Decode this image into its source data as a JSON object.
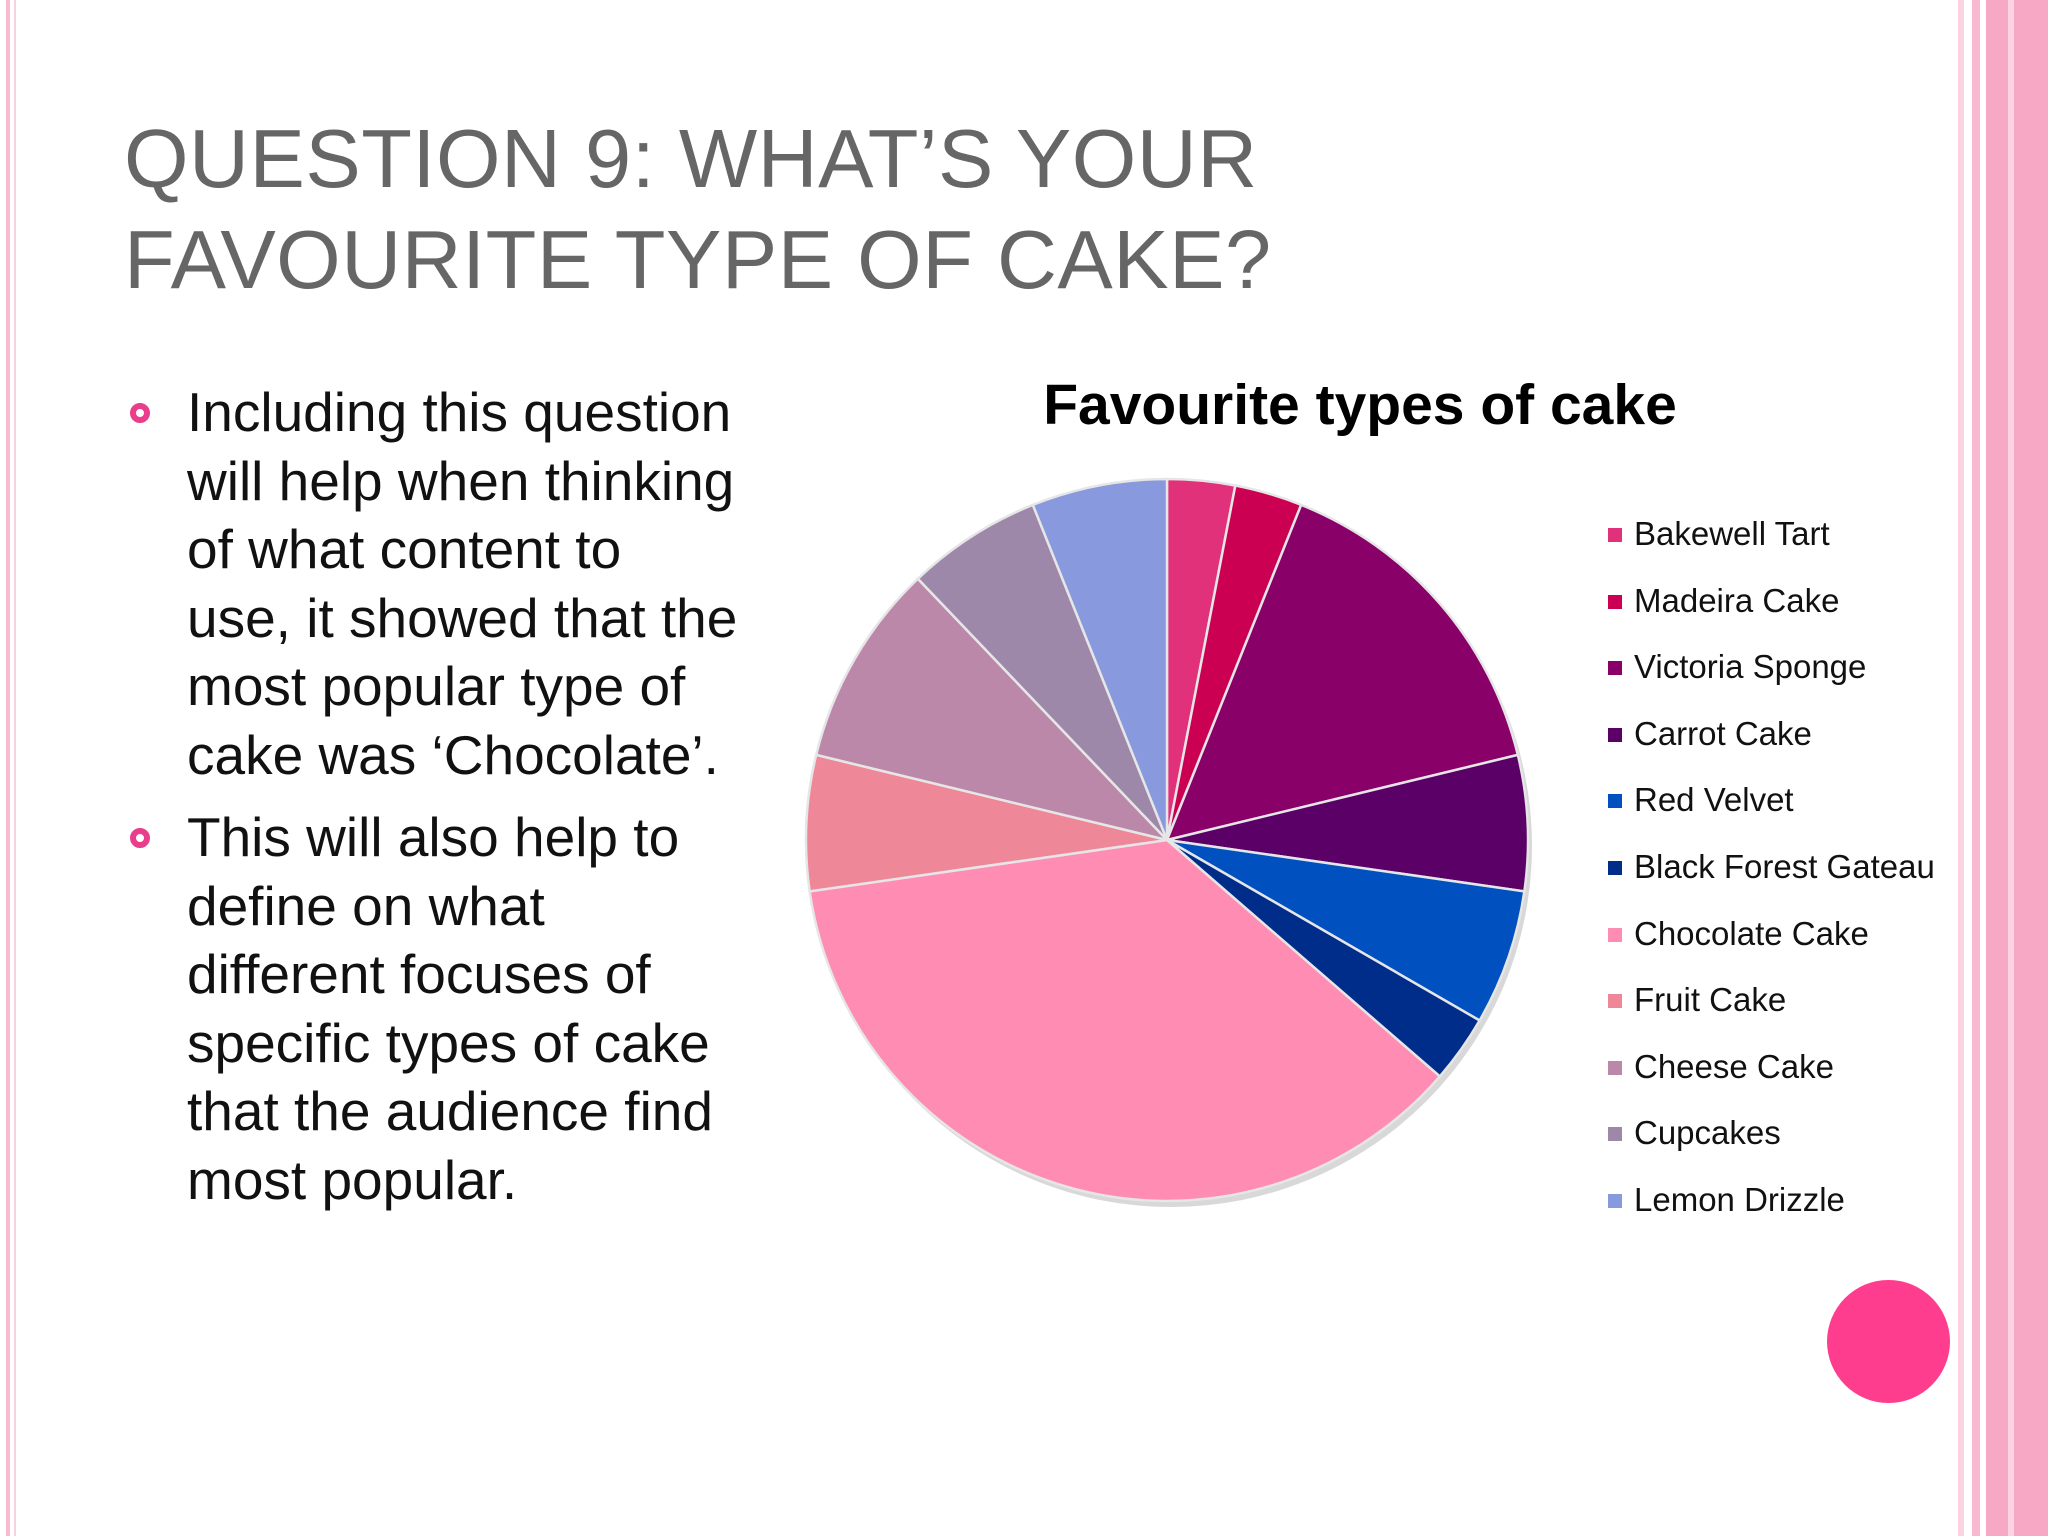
{
  "slide": {
    "title_lines": [
      "QUESTION 9: WHAT’S YOUR",
      "FAVOURITE TYPE OF CAKE?"
    ],
    "bullets": [
      [
        "Including this question",
        "will help when thinking",
        "of what content to",
        "use, it showed that the",
        "most popular type of",
        "cake was ‘Chocolate’."
      ],
      [
        "This will also help to",
        "define on what",
        "different focuses of",
        "specific types of cake",
        "that the audience find",
        "most popular."
      ]
    ],
    "colors": {
      "bullet": "#e83e8c",
      "edge": "#f7a8c4",
      "accent_dot": "#ff3d8f",
      "title": "#666666"
    }
  },
  "chart_data": {
    "type": "pie",
    "title": "Favourite types of cake",
    "categories": [
      "Bakewell Tart",
      "Madeira Cake",
      "Victoria Sponge",
      "Carrot Cake",
      "Red Velvet",
      "Black Forest Gateau",
      "Chocolate Cake",
      "Fruit Cake",
      "Cheese Cake",
      "Cupcakes",
      "Lemon Drizzle"
    ],
    "values": [
      1,
      1,
      5,
      2,
      2,
      1,
      12,
      2,
      3,
      2,
      2
    ],
    "colors": [
      "#e0317a",
      "#cc0052",
      "#8a0069",
      "#5a0066",
      "#0050c0",
      "#002d8a",
      "#ff8db3",
      "#ee8898",
      "#bb88aa",
      "#9e88aa",
      "#8899dd"
    ],
    "legend_position": "right",
    "start_angle": "top, clockwise"
  }
}
